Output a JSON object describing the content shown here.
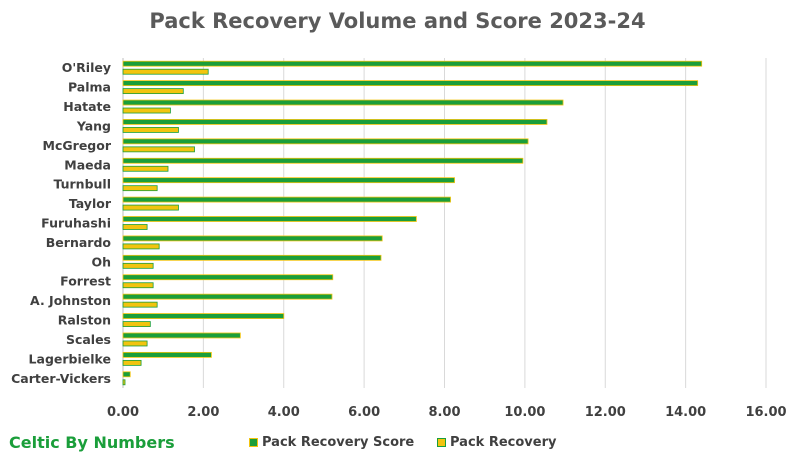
{
  "chart_data": {
    "type": "bar",
    "orientation": "horizontal",
    "title": "Pack Recovery Volume and Score 2023-24",
    "categories": [
      "O'Riley",
      "Palma",
      "Hatate",
      "Yang",
      "McGregor",
      "Maeda",
      "Turnbull",
      "Taylor",
      "Furuhashi",
      "Bernardo",
      "Oh",
      "Forrest",
      "A. Johnston",
      "Ralston",
      "Scales",
      "Lagerbielke",
      "Carter-Vickers"
    ],
    "series": [
      {
        "name": "Pack Recovery Score",
        "color": "#1a9e3a",
        "border": "#f2c40f",
        "values": [
          14.4,
          14.3,
          10.95,
          10.55,
          10.08,
          9.95,
          8.25,
          8.15,
          7.3,
          6.45,
          6.42,
          5.22,
          5.2,
          4.0,
          2.92,
          2.2,
          0.18
        ]
      },
      {
        "name": "Pack Recovery",
        "color": "#f2c40f",
        "border": "#1a9e3a",
        "values": [
          2.12,
          1.5,
          1.18,
          1.38,
          1.78,
          1.12,
          0.85,
          1.38,
          0.6,
          0.9,
          0.75,
          0.75,
          0.85,
          0.68,
          0.6,
          0.45,
          0.05
        ]
      }
    ],
    "xlim": [
      0,
      16
    ],
    "xticks": [
      "0.00",
      "2.00",
      "4.00",
      "6.00",
      "8.00",
      "10.00",
      "12.00",
      "14.00",
      "16.00"
    ],
    "grid": true,
    "legend_position": "bottom"
  },
  "branding": "Celtic By Numbers"
}
